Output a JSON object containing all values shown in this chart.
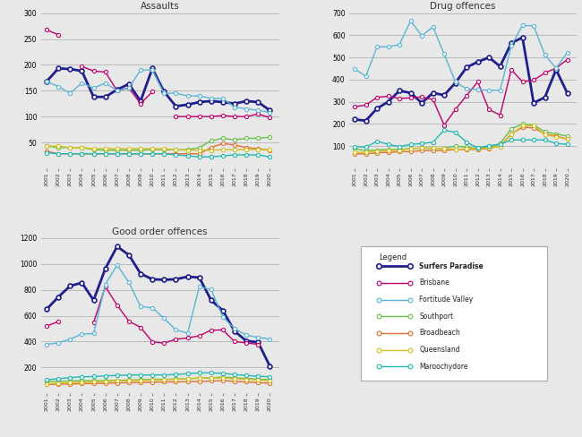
{
  "years": [
    2001,
    2002,
    2003,
    2004,
    2005,
    2006,
    2007,
    2008,
    2009,
    2010,
    2011,
    2012,
    2013,
    2014,
    2015,
    2016,
    2017,
    2018,
    2019,
    2020
  ],
  "series_colors": {
    "Surfers Paradise": "#1e1e8c",
    "Brisbane": "#c0006a",
    "Fortitude Valley": "#5ab4d6",
    "Southport": "#6abf4b",
    "Broadbeach": "#e07030",
    "Queensland": "#d4c020",
    "Maroochydore": "#20b8b0"
  },
  "assaults": {
    "Surfers Paradise": [
      168,
      193,
      192,
      188,
      138,
      138,
      152,
      163,
      130,
      193,
      148,
      120,
      123,
      128,
      130,
      128,
      125,
      130,
      128,
      112
    ],
    "Brisbane": [
      268,
      258,
      null,
      197,
      188,
      186,
      150,
      155,
      125,
      148,
      null,
      100,
      100,
      100,
      100,
      102,
      100,
      100,
      105,
      98
    ],
    "Fortitude Valley": [
      168,
      158,
      145,
      165,
      155,
      165,
      150,
      155,
      190,
      190,
      145,
      145,
      140,
      140,
      135,
      135,
      118,
      115,
      112,
      108
    ],
    "Southport": [
      43,
      40,
      40,
      40,
      36,
      35,
      35,
      35,
      35,
      36,
      36,
      36,
      36,
      40,
      53,
      58,
      55,
      58,
      58,
      60
    ],
    "Broadbeach": [
      33,
      28,
      28,
      28,
      28,
      28,
      28,
      28,
      28,
      28,
      28,
      28,
      28,
      28,
      40,
      48,
      45,
      40,
      38,
      35
    ],
    "Queensland": [
      43,
      43,
      40,
      40,
      38,
      38,
      38,
      38,
      38,
      38,
      38,
      36,
      35,
      35,
      35,
      36,
      36,
      36,
      36,
      36
    ],
    "Maroochydore": [
      30,
      28,
      28,
      28,
      28,
      28,
      28,
      28,
      28,
      28,
      28,
      26,
      24,
      22,
      22,
      24,
      26,
      26,
      26,
      22
    ]
  },
  "drug_offences": {
    "Surfers Paradise": [
      220,
      215,
      270,
      300,
      350,
      340,
      295,
      340,
      330,
      385,
      455,
      480,
      500,
      460,
      565,
      590,
      295,
      320,
      445,
      340
    ],
    "Brisbane": [
      278,
      285,
      320,
      325,
      315,
      318,
      322,
      310,
      195,
      265,
      328,
      390,
      265,
      240,
      445,
      390,
      398,
      430,
      452,
      490
    ],
    "Fortitude Valley": [
      448,
      415,
      548,
      548,
      558,
      665,
      598,
      638,
      515,
      390,
      358,
      355,
      352,
      352,
      552,
      645,
      642,
      512,
      452,
      522
    ],
    "Southport": [
      88,
      80,
      82,
      85,
      85,
      90,
      90,
      90,
      90,
      100,
      95,
      90,
      95,
      112,
      178,
      200,
      195,
      165,
      155,
      145
    ],
    "Broadbeach": [
      65,
      65,
      70,
      72,
      75,
      75,
      80,
      80,
      80,
      85,
      85,
      85,
      90,
      100,
      155,
      185,
      182,
      155,
      145,
      132
    ],
    "Queensland": [
      72,
      72,
      78,
      80,
      82,
      88,
      92,
      92,
      88,
      85,
      88,
      88,
      92,
      98,
      152,
      192,
      192,
      152,
      142,
      132
    ],
    "Maroochydore": [
      98,
      95,
      122,
      108,
      98,
      108,
      112,
      118,
      172,
      162,
      118,
      92,
      102,
      108,
      128,
      128,
      128,
      128,
      112,
      108
    ]
  },
  "good_order": {
    "Surfers Paradise": [
      650,
      745,
      830,
      855,
      720,
      965,
      1135,
      1070,
      925,
      882,
      878,
      882,
      902,
      895,
      720,
      640,
      480,
      405,
      395,
      210
    ],
    "Brisbane": [
      520,
      555,
      null,
      null,
      548,
      825,
      682,
      558,
      510,
      398,
      388,
      418,
      428,
      445,
      488,
      490,
      400,
      390,
      378,
      null
    ],
    "Fortitude Valley": [
      378,
      390,
      420,
      458,
      462,
      842,
      992,
      858,
      672,
      660,
      580,
      490,
      465,
      825,
      802,
      590,
      500,
      450,
      432,
      420
    ],
    "Southport": [
      90,
      92,
      95,
      98,
      98,
      98,
      100,
      102,
      105,
      108,
      108,
      110,
      112,
      118,
      120,
      125,
      120,
      115,
      110,
      105
    ],
    "Broadbeach": [
      68,
      70,
      72,
      75,
      75,
      78,
      80,
      82,
      85,
      85,
      88,
      88,
      90,
      92,
      95,
      98,
      92,
      88,
      82,
      78
    ],
    "Queensland": [
      72,
      78,
      82,
      85,
      88,
      92,
      95,
      98,
      100,
      102,
      105,
      108,
      112,
      118,
      118,
      118,
      112,
      108,
      102,
      98
    ],
    "Maroochydore": [
      105,
      112,
      122,
      128,
      130,
      135,
      138,
      142,
      142,
      142,
      142,
      145,
      152,
      158,
      158,
      155,
      145,
      138,
      132,
      128
    ]
  },
  "legend_order": [
    "Surfers Paradise",
    "Brisbane",
    "Fortitude Valley",
    "Southport",
    "Broadbeach",
    "Queensland",
    "Maroochydore"
  ],
  "bg_color": "#e8e8e8",
  "plot_bg": "#e8e8e8",
  "grid_color": "#bbbbbb",
  "assaults_ylim": [
    0,
    300
  ],
  "assaults_yticks": [
    50,
    100,
    150,
    200,
    250,
    300
  ],
  "drug_ylim": [
    0,
    700
  ],
  "drug_yticks": [
    100,
    200,
    300,
    400,
    500,
    600,
    700
  ],
  "good_ylim": [
    0,
    1200
  ],
  "good_yticks": [
    200,
    400,
    600,
    800,
    1000,
    1200
  ]
}
